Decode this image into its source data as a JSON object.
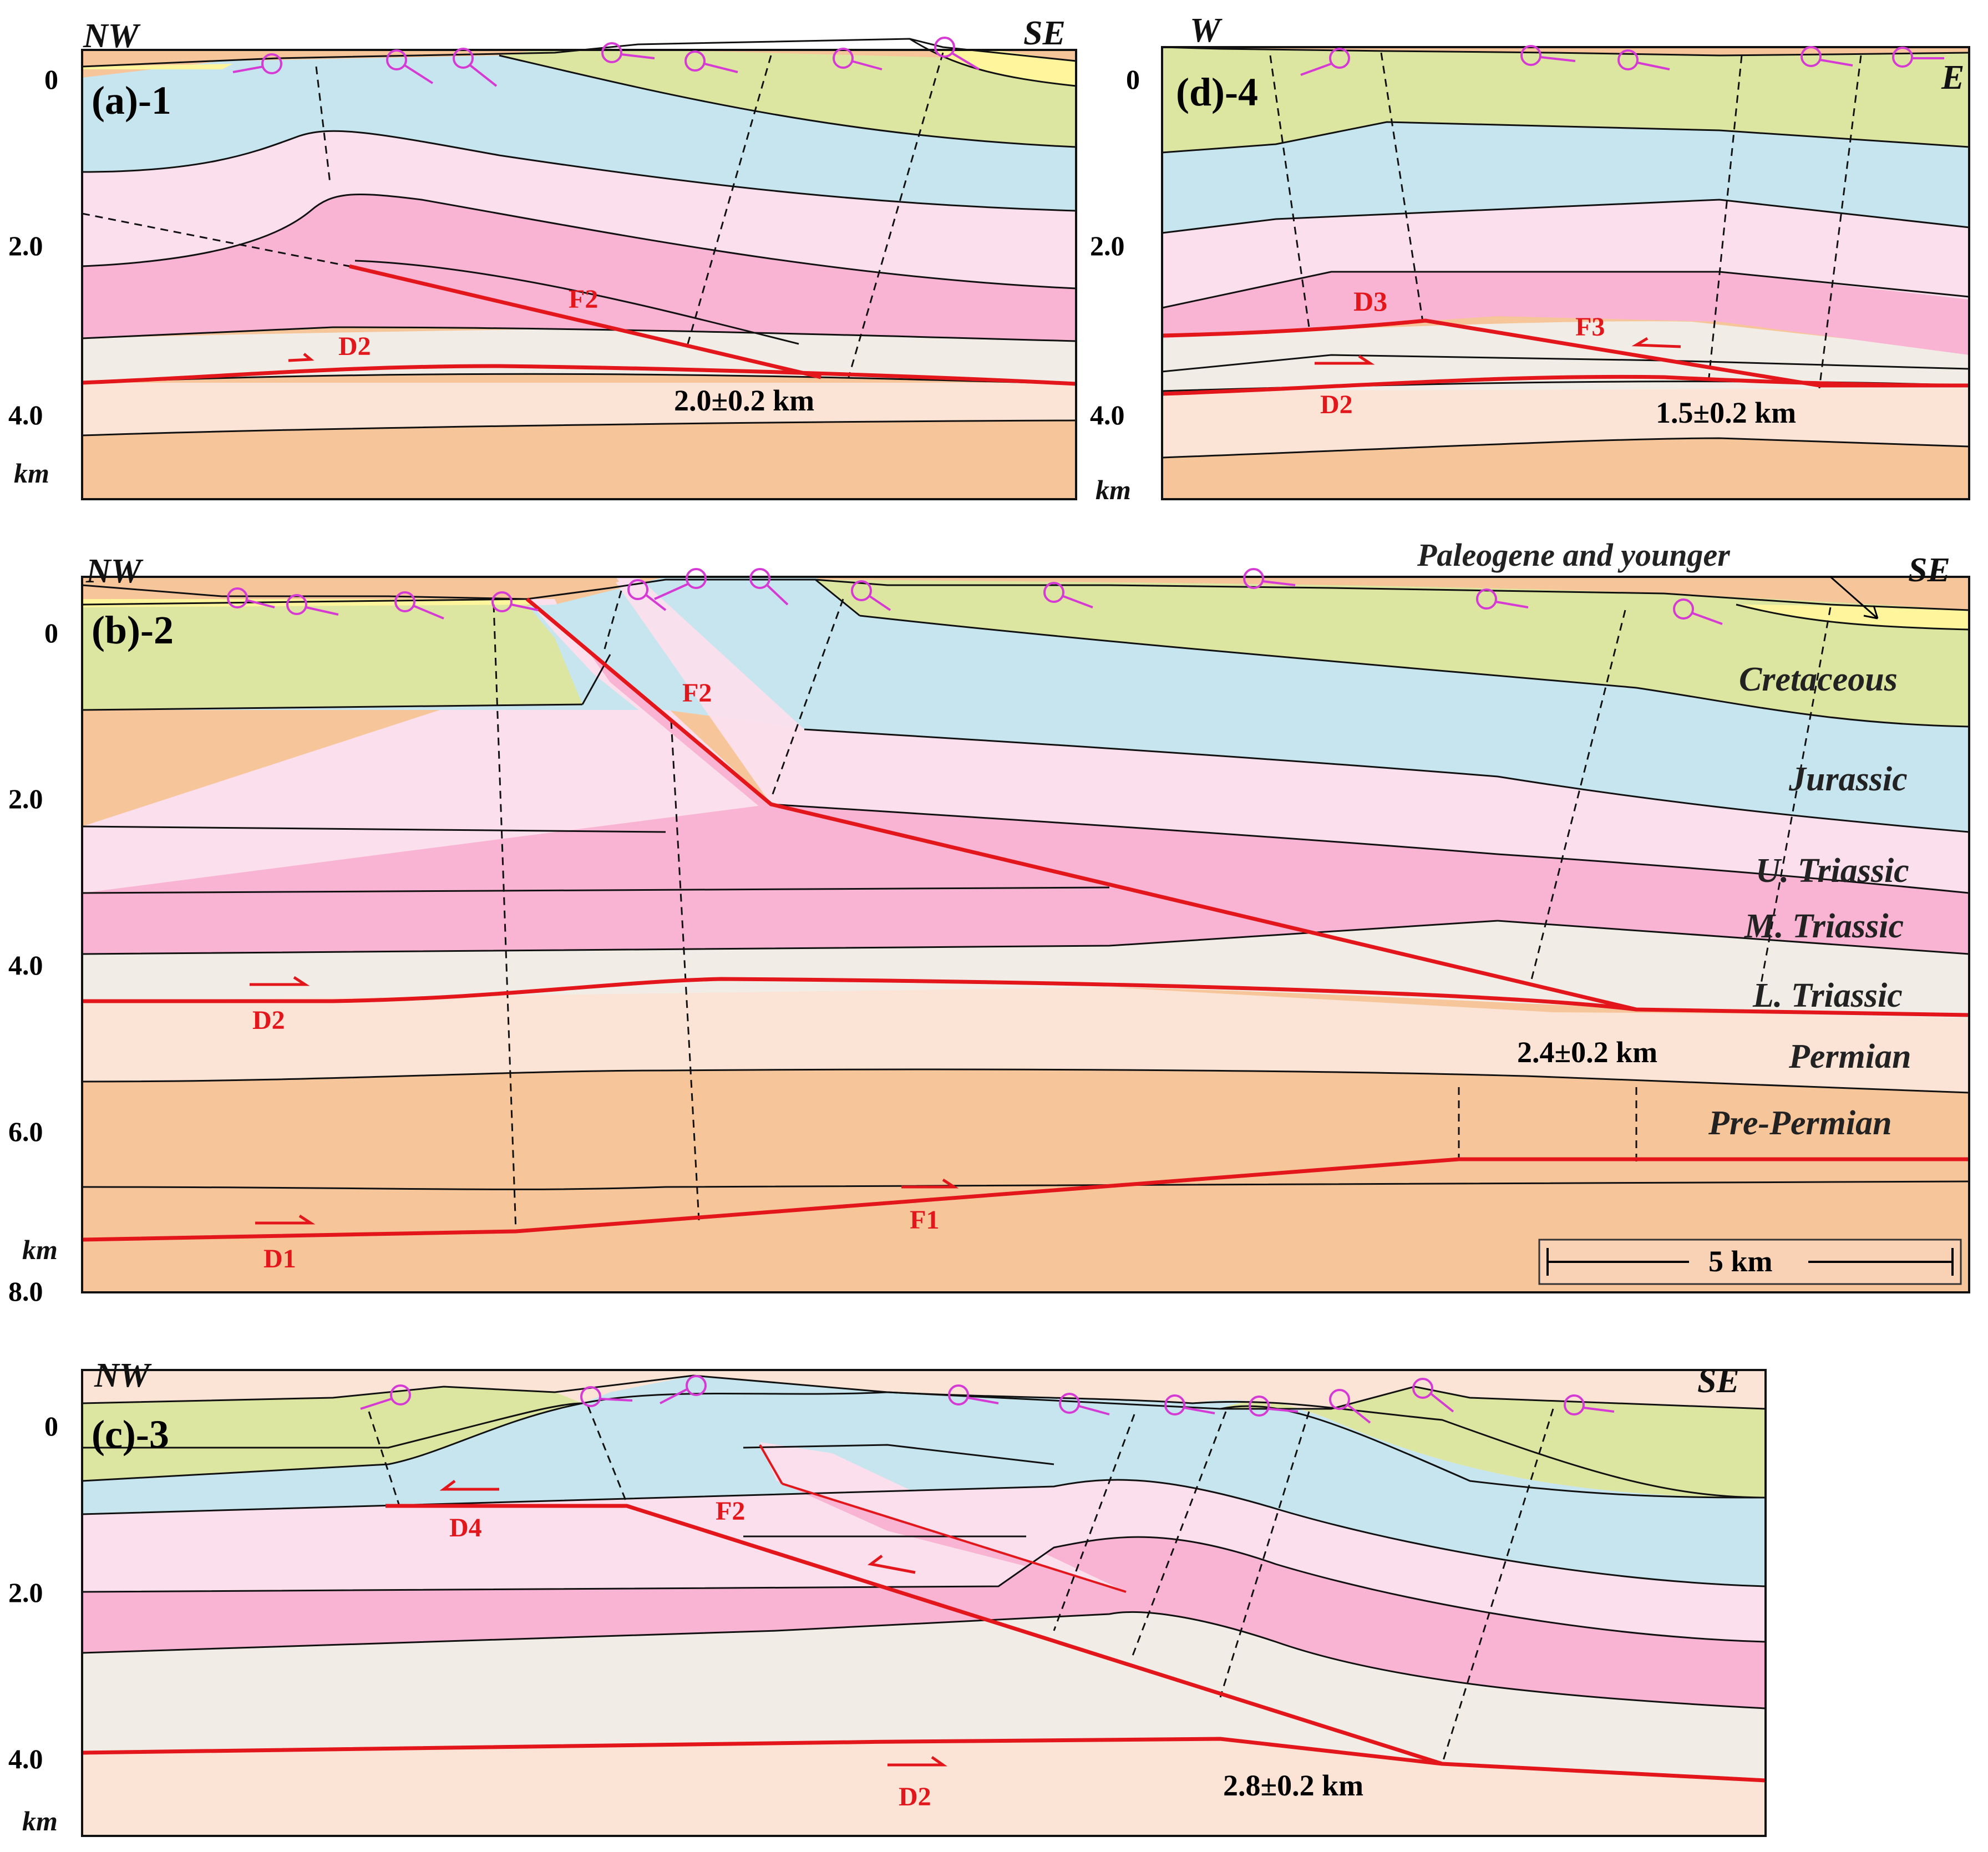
{
  "colors": {
    "paleogene": "#fff59d",
    "cretaceous": "#dde6a0",
    "jurassic": "#c7e5ee",
    "u_triassic": "#fbdfec",
    "m_triassic": "#f8b4d2",
    "l_triassic": "#f1ede6",
    "permian": "#fbe4d6",
    "pre_permian": "#f7c59a",
    "fault": "#e3161b",
    "dip_symbol": "#d63ad4"
  },
  "panels": {
    "a": {
      "id": "(a)-1",
      "left": "NW",
      "right": "SE",
      "ticks": [
        "0",
        "2.0",
        "4.0"
      ],
      "unit": "km",
      "faults": [
        "F2",
        "D2"
      ],
      "displacement": "2.0±0.2 km"
    },
    "d": {
      "id": "(d)-4",
      "left": "W",
      "right": "E",
      "ticks": [
        "0",
        "2.0",
        "4.0"
      ],
      "unit": "km",
      "faults": [
        "D3",
        "F3",
        "D2"
      ],
      "displacement": "1.5±0.2 km"
    },
    "b": {
      "id": "(b)-2",
      "left": "NW",
      "right": "SE",
      "ticks": [
        "0",
        "2.0",
        "4.0",
        "6.0",
        "8.0"
      ],
      "unit": "km",
      "faults": [
        "F2",
        "D2",
        "D1",
        "F1"
      ],
      "displacement": "2.4±0.2 km",
      "scale_bar": "5 km",
      "legend": [
        "Paleogene and younger",
        "Cretaceous",
        "Jurassic",
        "U. Triassic",
        "M. Triassic",
        "L. Triassic",
        "Permian",
        "Pre-Permian"
      ]
    },
    "c": {
      "id": "(c)-3",
      "left": "NW",
      "right": "SE",
      "ticks": [
        "0",
        "2.0",
        "4.0"
      ],
      "unit": "km",
      "faults": [
        "F2",
        "D4",
        "D2"
      ],
      "displacement": "2.8±0.2 km"
    }
  }
}
